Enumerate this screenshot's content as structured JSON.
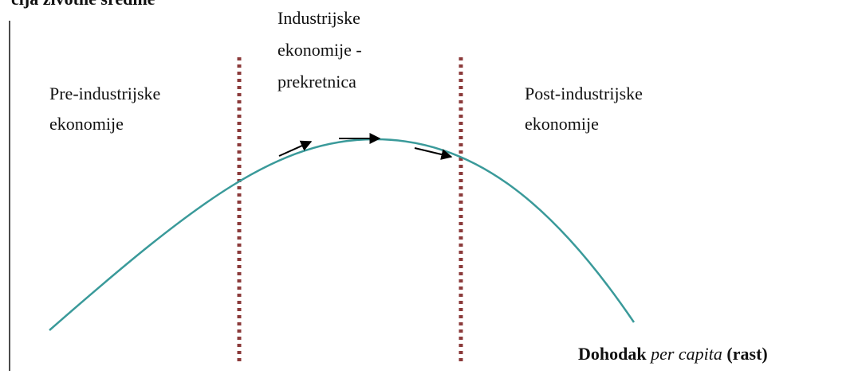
{
  "y_axis_label": "cija životne sredine",
  "x_axis_label": {
    "main": "Dohodak",
    "italic": "per capita",
    "suffix": "(rast)"
  },
  "regions": [
    {
      "lines": [
        "Pre-industrijske",
        "ekonomije"
      ]
    },
    {
      "lines": [
        "Industrijske",
        "ekonomije -",
        "prekretnica"
      ]
    },
    {
      "lines": [
        "Post-industrijske",
        "ekonomije"
      ]
    }
  ]
}
